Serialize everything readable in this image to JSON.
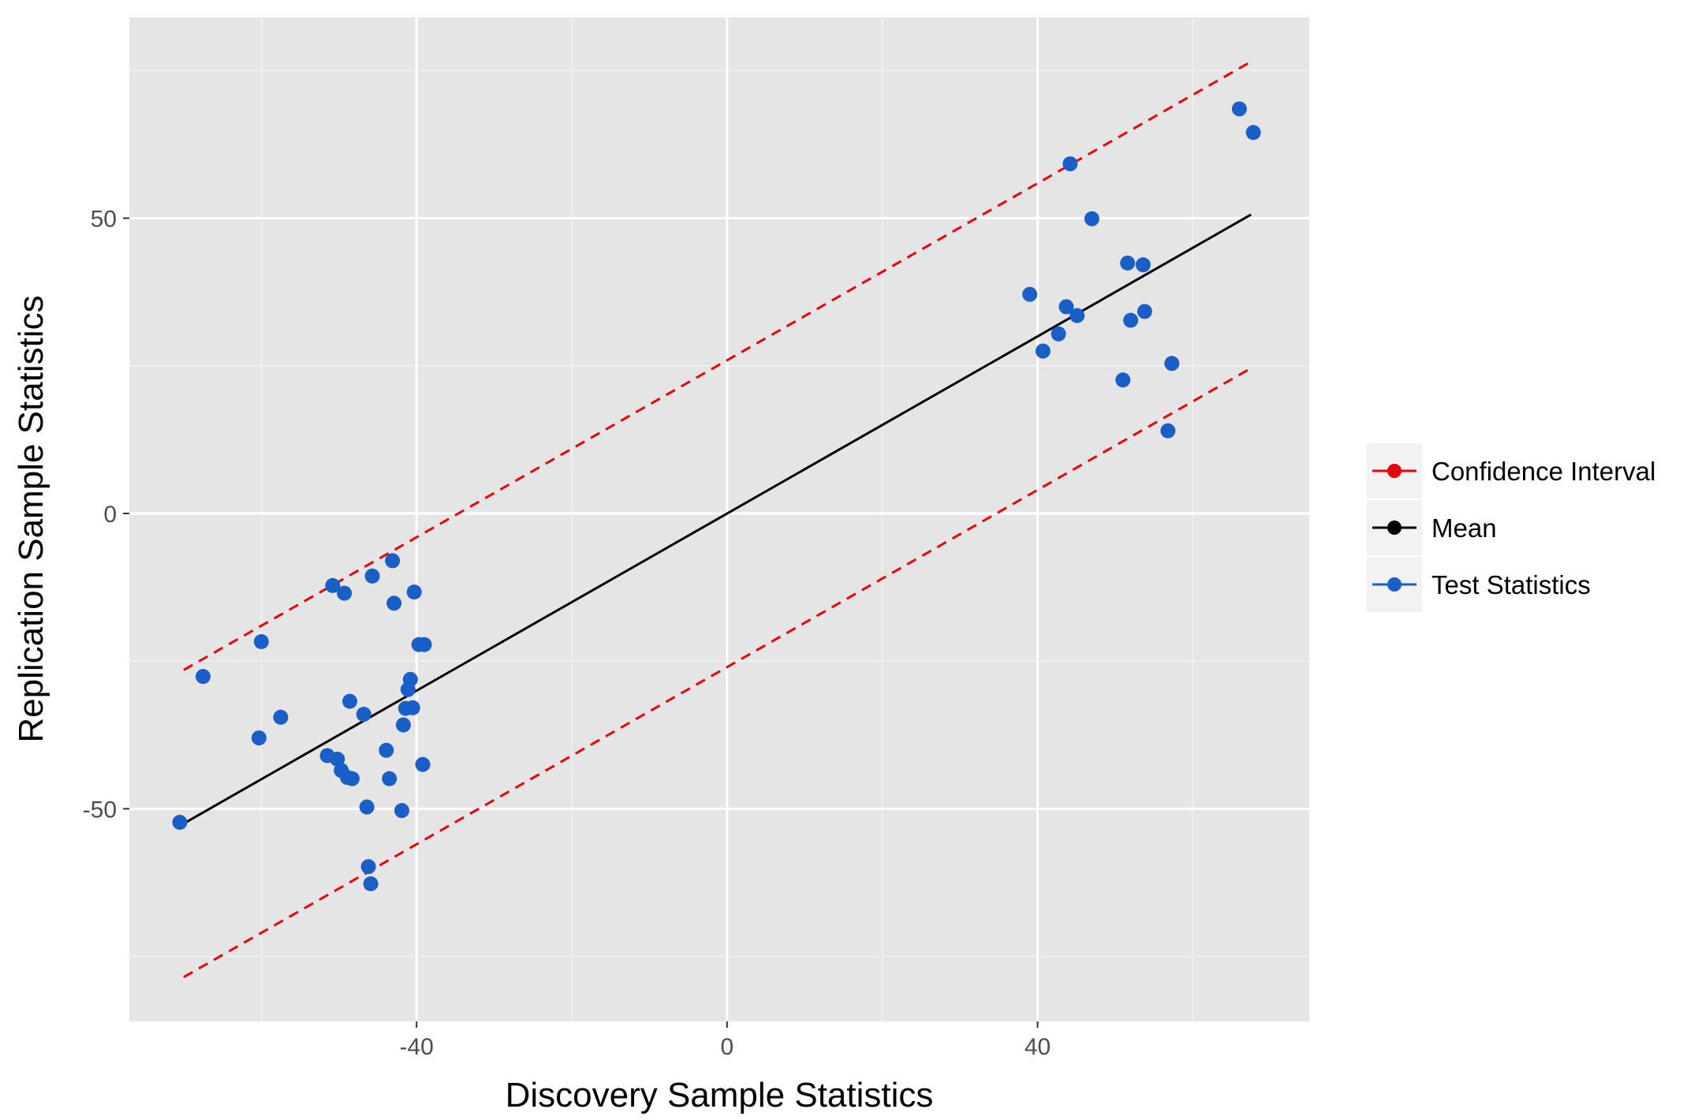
{
  "chart_data": {
    "type": "scatter",
    "title": "",
    "xlabel": "Discovery Sample Statistics",
    "ylabel": "Replication Sample Statistics",
    "xlim": [
      -77,
      75
    ],
    "ylim": [
      -86,
      84
    ],
    "x_ticks": [
      -40,
      0,
      40
    ],
    "y_ticks": [
      -50,
      0,
      50
    ],
    "x_tick_labels": [
      "-40",
      "0",
      "40"
    ],
    "y_tick_labels": [
      "-50",
      "0",
      "50"
    ],
    "grid": true,
    "background": "#e5e5e5",
    "legend": {
      "position": "right",
      "entries": [
        {
          "label": "Confidence Interval",
          "color": "#e8000b"
        },
        {
          "label": "Mean",
          "color": "#000000"
        },
        {
          "label": "Test Statistics",
          "color": "#1a5ec7"
        }
      ]
    },
    "series": [
      {
        "name": "Mean",
        "kind": "line",
        "style": "solid",
        "color": "#000000",
        "x": [
          -70,
          67.5
        ],
        "y": [
          -52.5,
          50.6
        ]
      },
      {
        "name": "Confidence Interval",
        "kind": "line",
        "style": "dashed",
        "color": "#e8000b",
        "x": [
          -70,
          67.5
        ],
        "y": [
          -26.5,
          76.5
        ]
      },
      {
        "name": "Confidence Interval",
        "kind": "line",
        "style": "dashed",
        "color": "#e8000b",
        "x": [
          -70,
          67.5
        ],
        "y": [
          -78.5,
          24.6
        ]
      },
      {
        "name": "Test Statistics",
        "kind": "points",
        "color": "#1a5ec7",
        "x": [
          -70.5,
          -67.5,
          -60.3,
          -60.0,
          -57.5,
          -51.5,
          -50.8,
          -50.2,
          -49.7,
          -49.3,
          -48.9,
          -48.6,
          -48.3,
          -46.8,
          -46.4,
          -46.2,
          -45.9,
          -45.7,
          -43.9,
          -43.5,
          -43.1,
          -42.9,
          -41.9,
          -41.7,
          -41.4,
          -41.1,
          -40.8,
          -40.5,
          -40.3,
          -39.7,
          -39.2,
          -39.0,
          39.0,
          40.7,
          42.7,
          43.7,
          44.2,
          45.1,
          47.0,
          51.0,
          51.6,
          52.0,
          53.6,
          53.8,
          56.8,
          57.3,
          66.0,
          67.8
        ],
        "y": [
          -52.3,
          -27.6,
          -38.0,
          -21.7,
          -34.5,
          -41.0,
          -12.2,
          -41.6,
          -43.5,
          -13.5,
          -44.7,
          -31.8,
          -44.9,
          -34.0,
          -49.7,
          -59.8,
          -62.7,
          -10.6,
          -40.1,
          -44.9,
          -8.0,
          -15.2,
          -50.3,
          -35.8,
          -33.0,
          -29.8,
          -28.1,
          -32.9,
          -13.3,
          -22.2,
          -42.5,
          -22.2,
          37.1,
          27.5,
          30.4,
          35.0,
          59.2,
          33.5,
          49.9,
          22.6,
          42.4,
          32.7,
          42.1,
          34.2,
          14.0,
          25.4,
          68.5,
          64.5
        ]
      }
    ]
  }
}
